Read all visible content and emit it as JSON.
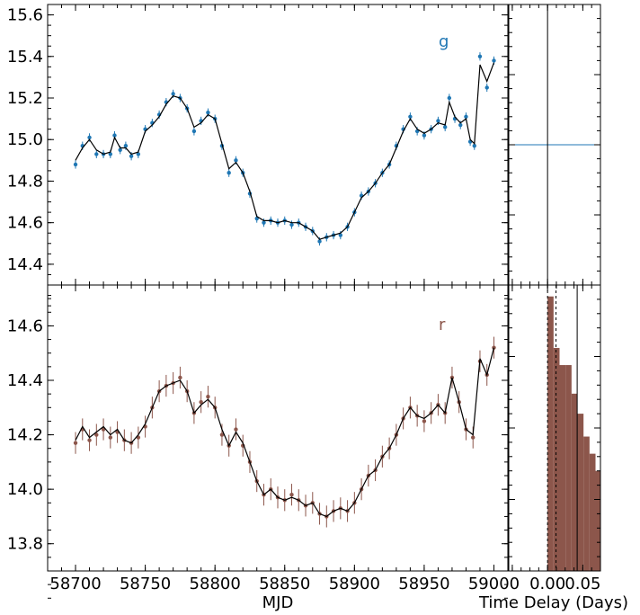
{
  "chart_data": [
    {
      "type": "scatter",
      "panel": "g-band light curve",
      "band_label": "g",
      "color": "#1f77b4",
      "model_color": "#000000",
      "xlim": [
        58680,
        59010
      ],
      "ylim": [
        14.3,
        15.65
      ],
      "yticks": [
        14.4,
        14.6,
        14.8,
        15.0,
        15.2,
        15.4,
        15.6
      ],
      "ytick_labels": [
        "14.4",
        "14.6",
        "14.8",
        "15.0",
        "15.2",
        "15.4",
        "15.6"
      ],
      "xticks": [
        58700,
        58750,
        58800,
        58850,
        58900,
        58950,
        59000
      ],
      "error": 0.02,
      "series": [
        {
          "x": [
            58700,
            58705,
            58710,
            58715,
            58720,
            58725,
            58728,
            58732,
            58736,
            58740,
            58745,
            58750,
            58755,
            58760,
            58765,
            58770,
            58775,
            58780,
            58785,
            58790,
            58795,
            58800,
            58805,
            58810,
            58815,
            58820,
            58825,
            58830,
            58835,
            58840,
            58845,
            58850,
            58855,
            58860,
            58865,
            58870,
            58875,
            58880,
            58885,
            58890,
            58895,
            58900,
            58905,
            58910,
            58915,
            58920,
            58925,
            58930,
            58935,
            58940,
            58945,
            58950,
            58955,
            58960,
            58965,
            58968,
            58972,
            58976,
            58980,
            58983,
            58986,
            58990,
            58995,
            59000
          ],
          "y": [
            14.88,
            14.97,
            15.01,
            14.93,
            14.93,
            14.93,
            15.02,
            14.95,
            14.97,
            14.92,
            14.93,
            15.05,
            15.08,
            15.12,
            15.18,
            15.22,
            15.2,
            15.15,
            15.04,
            15.09,
            15.13,
            15.1,
            14.97,
            14.84,
            14.9,
            14.84,
            14.74,
            14.62,
            14.6,
            14.61,
            14.6,
            14.61,
            14.59,
            14.6,
            14.58,
            14.56,
            14.51,
            14.53,
            14.54,
            14.54,
            14.58,
            14.65,
            14.73,
            14.75,
            14.79,
            14.84,
            14.88,
            14.97,
            15.05,
            15.11,
            15.04,
            15.02,
            15.05,
            15.09,
            15.06,
            15.2,
            15.1,
            15.07,
            15.11,
            14.99,
            14.97,
            15.4,
            15.25,
            15.38
          ]
        }
      ],
      "model": {
        "x": [
          58700,
          58705,
          58710,
          58715,
          58720,
          58725,
          58728,
          58732,
          58736,
          58740,
          58745,
          58750,
          58755,
          58760,
          58765,
          58770,
          58775,
          58780,
          58785,
          58790,
          58795,
          58800,
          58805,
          58810,
          58815,
          58820,
          58825,
          58830,
          58835,
          58840,
          58845,
          58850,
          58855,
          58860,
          58865,
          58870,
          58875,
          58880,
          58885,
          58890,
          58895,
          58900,
          58905,
          58910,
          58915,
          58920,
          58925,
          58930,
          58935,
          58940,
          58945,
          58950,
          58955,
          58960,
          58965,
          58968,
          58972,
          58976,
          58980,
          58983,
          58986,
          58990,
          58995,
          59000
        ],
        "y": [
          14.9,
          14.96,
          15.0,
          14.95,
          14.93,
          14.94,
          15.01,
          14.96,
          14.96,
          14.93,
          14.94,
          15.04,
          15.07,
          15.11,
          15.17,
          15.21,
          15.2,
          15.15,
          15.06,
          15.08,
          15.12,
          15.1,
          14.98,
          14.86,
          14.89,
          14.84,
          14.75,
          14.63,
          14.61,
          14.61,
          14.6,
          14.61,
          14.6,
          14.6,
          14.58,
          14.56,
          14.52,
          14.53,
          14.54,
          14.55,
          14.58,
          14.65,
          14.72,
          14.75,
          14.79,
          14.84,
          14.88,
          14.96,
          15.04,
          15.1,
          15.05,
          15.03,
          15.05,
          15.08,
          15.07,
          15.18,
          15.11,
          15.08,
          15.1,
          15.0,
          14.98,
          15.36,
          15.28,
          15.37
        ]
      }
    },
    {
      "type": "scatter",
      "panel": "r-band light curve",
      "band_label": "r",
      "color": "#8c564b",
      "model_color": "#000000",
      "xlim": [
        58680,
        59010
      ],
      "ylim": [
        13.7,
        14.75
      ],
      "yticks": [
        13.8,
        14.0,
        14.2,
        14.4,
        14.6
      ],
      "ytick_labels": [
        "13.8",
        "14.0",
        "14.2",
        "14.4",
        "14.6"
      ],
      "xticks": [
        58700,
        58750,
        58800,
        58850,
        58900,
        58950,
        59000
      ],
      "xtick_labels": [
        "58700",
        "58750",
        "58800",
        "58850",
        "58900",
        "58950",
        "59000"
      ],
      "xlabel": "MJD",
      "error": 0.04,
      "series": [
        {
          "x": [
            58700,
            58705,
            58710,
            58715,
            58720,
            58725,
            58730,
            58735,
            58740,
            58745,
            58750,
            58755,
            58760,
            58765,
            58770,
            58775,
            58780,
            58785,
            58790,
            58795,
            58800,
            58805,
            58810,
            58815,
            58820,
            58825,
            58830,
            58835,
            58840,
            58845,
            58850,
            58855,
            58860,
            58865,
            58870,
            58875,
            58880,
            58885,
            58890,
            58895,
            58900,
            58905,
            58910,
            58915,
            58920,
            58925,
            58930,
            58935,
            58940,
            58945,
            58950,
            58955,
            58960,
            58965,
            58970,
            58975,
            58980,
            58985,
            58990,
            58995,
            59000
          ],
          "y": [
            14.17,
            14.22,
            14.18,
            14.2,
            14.22,
            14.19,
            14.21,
            14.18,
            14.17,
            14.19,
            14.23,
            14.3,
            14.36,
            14.38,
            14.39,
            14.41,
            14.36,
            14.28,
            14.32,
            14.34,
            14.3,
            14.2,
            14.16,
            14.22,
            14.16,
            14.1,
            14.03,
            13.98,
            14.0,
            13.97,
            13.96,
            13.98,
            13.96,
            13.94,
            13.95,
            13.91,
            13.9,
            13.92,
            13.93,
            13.92,
            13.95,
            14.0,
            14.05,
            14.07,
            14.12,
            14.15,
            14.2,
            14.26,
            14.3,
            14.27,
            14.25,
            14.28,
            14.31,
            14.28,
            14.41,
            14.32,
            14.22,
            14.19,
            14.47,
            14.42,
            14.52
          ]
        }
      ],
      "model": {
        "x": [
          58700,
          58705,
          58710,
          58715,
          58720,
          58725,
          58730,
          58735,
          58740,
          58745,
          58750,
          58755,
          58760,
          58765,
          58770,
          58775,
          58780,
          58785,
          58790,
          58795,
          58800,
          58805,
          58810,
          58815,
          58820,
          58825,
          58830,
          58835,
          58840,
          58845,
          58850,
          58855,
          58860,
          58865,
          58870,
          58875,
          58880,
          58885,
          58890,
          58895,
          58900,
          58905,
          58910,
          58915,
          58920,
          58925,
          58930,
          58935,
          58940,
          58945,
          58950,
          58955,
          58960,
          58965,
          58970,
          58975,
          58980,
          58985,
          58990,
          58995,
          59000
        ],
        "y": [
          14.18,
          14.23,
          14.19,
          14.21,
          14.23,
          14.2,
          14.22,
          14.18,
          14.17,
          14.2,
          14.24,
          14.3,
          14.36,
          14.38,
          14.39,
          14.4,
          14.36,
          14.28,
          14.31,
          14.33,
          14.3,
          14.22,
          14.16,
          14.21,
          14.17,
          14.1,
          14.03,
          13.98,
          14.0,
          13.97,
          13.96,
          13.97,
          13.96,
          13.94,
          13.95,
          13.91,
          13.9,
          13.92,
          13.93,
          13.92,
          13.95,
          14.0,
          14.05,
          14.07,
          14.12,
          14.15,
          14.2,
          14.26,
          14.3,
          14.27,
          14.26,
          14.28,
          14.31,
          14.28,
          14.41,
          14.32,
          14.22,
          14.2,
          14.48,
          14.42,
          14.52
        ]
      }
    },
    {
      "type": "line",
      "panel": "g-band time delay distribution",
      "color": "#1f77b4",
      "xlim": [
        -0.055,
        0.075
      ],
      "ylim": [
        0,
        1
      ],
      "level": 0.5,
      "vlines": [
        {
          "x": 0.0,
          "style": "solid"
        }
      ]
    },
    {
      "type": "bar",
      "panel": "r-band time delay distribution",
      "color": "#8c564b",
      "xlim": [
        -0.055,
        0.075
      ],
      "ylim": [
        0,
        1
      ],
      "xticks": [
        0.0,
        0.05
      ],
      "xtick_labels": [
        "0.00",
        "0.05"
      ],
      "xlabel": "Time Delay (Days)",
      "bin_width": 0.0085,
      "bins": [
        0.0,
        0.0085,
        0.017,
        0.0255,
        0.034,
        0.0425,
        0.051,
        0.0595,
        0.068
      ],
      "values": [
        0.96,
        0.78,
        0.72,
        0.72,
        0.62,
        0.55,
        0.47,
        0.41,
        0.35
      ],
      "vlines": [
        {
          "x": 0.0,
          "style": "dashed"
        },
        {
          "x": 0.012,
          "style": "dashed"
        },
        {
          "x": 0.042,
          "style": "solid"
        }
      ]
    }
  ]
}
